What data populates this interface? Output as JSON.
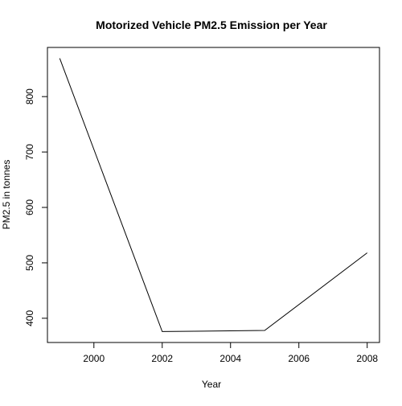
{
  "chart_data": {
    "type": "line",
    "title": "Motorized Vehicle PM2.5 Emission per Year",
    "xlabel": "Year",
    "ylabel": "PM2.5 in tonnes",
    "x": [
      1999,
      2002,
      2005,
      2008
    ],
    "series": [
      {
        "values": [
          869,
          376,
          378,
          518
        ]
      }
    ],
    "xlim": [
      1999,
      2008
    ],
    "ylim": [
      376,
      869
    ],
    "x_ticks": [
      2000,
      2002,
      2004,
      2006,
      2008
    ],
    "x_tick_labels": [
      "2000",
      "2002",
      "2004",
      "2006",
      "2008"
    ],
    "y_ticks": [
      400,
      500,
      600,
      700,
      800
    ],
    "y_tick_labels": [
      "400",
      "500",
      "600",
      "700",
      "800"
    ],
    "grid": false,
    "legend": "none",
    "line_color": "#000000"
  }
}
